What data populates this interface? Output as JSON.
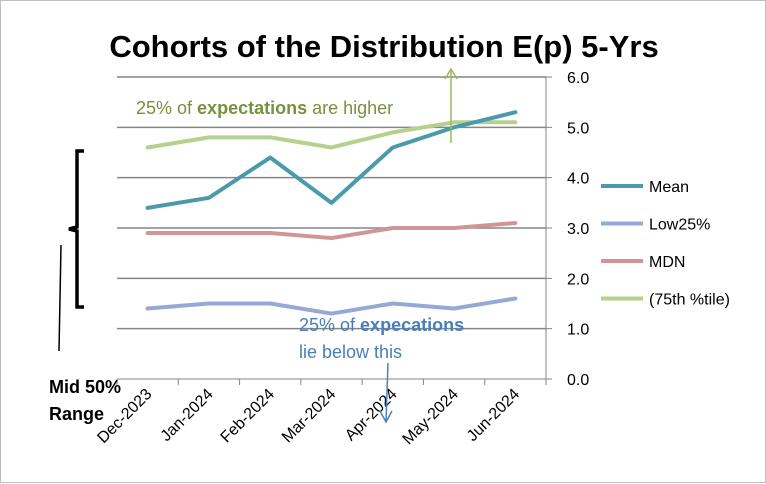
{
  "chart_data": {
    "type": "line",
    "title": "Cohorts of the Distribution E(p) 5-Yrs",
    "categories": [
      "Dec-2023",
      "Jan-2024",
      "Feb-2024",
      "Mar-2024",
      "Apr-2024",
      "May-2024",
      "Jun-2024"
    ],
    "ylim": [
      0,
      6
    ],
    "yticks": [
      "0.0",
      "1.0",
      "2.0",
      "3.0",
      "4.0",
      "5.0",
      "6.0"
    ],
    "y_axis_side": "right",
    "grid": true,
    "legend_position": "right",
    "series": [
      {
        "name": "Mean",
        "color": "#4a9aab",
        "values": [
          3.4,
          3.6,
          4.4,
          3.5,
          4.6,
          5.0,
          5.3
        ]
      },
      {
        "name": "Low25%",
        "color": "#95a9d4",
        "values": [
          1.4,
          1.5,
          1.5,
          1.3,
          1.5,
          1.4,
          1.6
        ]
      },
      {
        "name": "MDN",
        "color": "#d19594",
        "values": [
          2.9,
          2.9,
          2.9,
          2.8,
          3.0,
          3.0,
          3.1
        ]
      },
      {
        "name": "(75th %tile)",
        "color": "#b6d18e",
        "values": [
          4.6,
          4.8,
          4.8,
          4.6,
          4.9,
          5.1,
          5.1
        ]
      }
    ],
    "annotations": {
      "upper": {
        "prefix": "25% of ",
        "bold": "expectations",
        "suffix": " are higher",
        "color": "#76923c"
      },
      "lower": {
        "prefix": "25% of ",
        "bold": "expecations",
        "line2": "lie below this",
        "color": "#4a7ebb"
      },
      "range_line1": "Mid 50%",
      "range_line2": "Range"
    }
  }
}
